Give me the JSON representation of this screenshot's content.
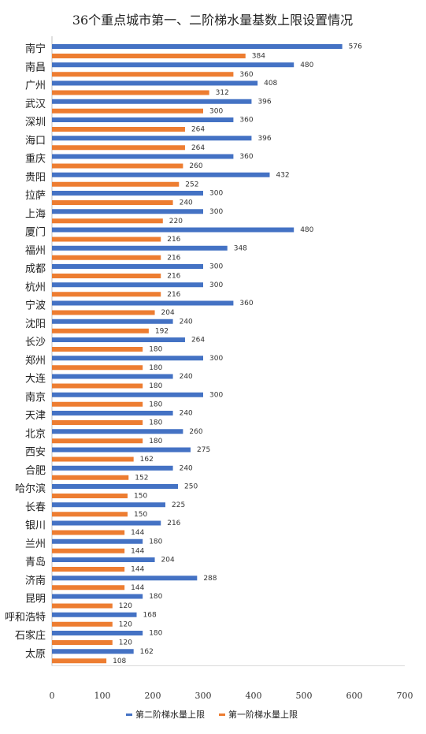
{
  "chart_data": {
    "type": "bar",
    "orientation": "horizontal",
    "title": "36个重点城市第一、二阶梯水量基数上限设置情况",
    "categories": [
      "南宁",
      "南昌",
      "广州",
      "武汉",
      "深圳",
      "海口",
      "重庆",
      "贵阳",
      "拉萨",
      "上海",
      "厦门",
      "福州",
      "成都",
      "杭州",
      "宁波",
      "沈阳",
      "长沙",
      "郑州",
      "大连",
      "南京",
      "天津",
      "北京",
      "西安",
      "合肥",
      "哈尔滨",
      "长春",
      "银川",
      "兰州",
      "青岛",
      "济南",
      "昆明",
      "呼和浩特",
      "石家庄",
      "太原"
    ],
    "series": [
      {
        "name": "第二阶梯水量上限",
        "color": "#4472C4",
        "values": [
          576,
          480,
          408,
          396,
          360,
          396,
          360,
          432,
          300,
          300,
          480,
          348,
          300,
          300,
          360,
          240,
          264,
          300,
          240,
          300,
          240,
          260,
          275,
          240,
          250,
          225,
          216,
          180,
          204,
          288,
          180,
          168,
          180,
          162
        ]
      },
      {
        "name": "第一阶梯水量上限",
        "color": "#ED7D31",
        "values": [
          384,
          360,
          312,
          300,
          264,
          264,
          260,
          252,
          240,
          220,
          216,
          216,
          216,
          216,
          204,
          192,
          180,
          180,
          180,
          180,
          180,
          180,
          162,
          152,
          150,
          150,
          144,
          144,
          144,
          144,
          120,
          120,
          120,
          108
        ]
      }
    ],
    "xlim": [
      0,
      700
    ],
    "xticks": [
      0,
      100,
      200,
      300,
      400,
      500,
      600,
      700
    ],
    "legend": "bottom",
    "data_labels": true
  }
}
